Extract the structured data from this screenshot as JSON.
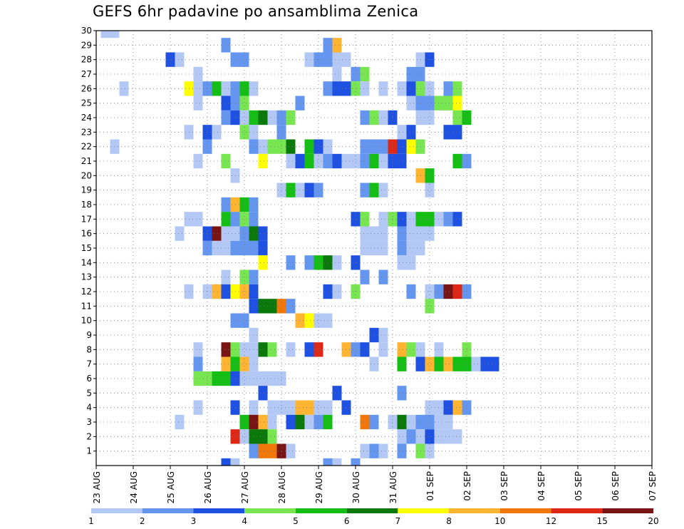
{
  "chart_data": {
    "type": "heatmap",
    "title": "GEFS 6hr padavine po ansamblima Zenica",
    "xlabel": "",
    "ylabel": "",
    "x_ticks": [
      "23 AUG",
      "24 AUG",
      "25 AUG",
      "26 AUG",
      "27 AUG",
      "28 AUG",
      "29 AUG",
      "30 AUG",
      "31 AUG",
      "01 SEP",
      "02 SEP",
      "03 SEP",
      "04 SEP",
      "05 SEP",
      "06 SEP",
      "07 SEP"
    ],
    "x_steps": 61,
    "steps_per_day": 4,
    "y_members": [
      1,
      2,
      3,
      4,
      5,
      6,
      7,
      8,
      9,
      10,
      11,
      12,
      13,
      14,
      15,
      16,
      17,
      18,
      19,
      20,
      21,
      22,
      23,
      24,
      25,
      26,
      27,
      28,
      29,
      30
    ],
    "y_range": [
      0,
      30
    ],
    "grid": true,
    "legend_position": "bottom",
    "legend": {
      "colors": [
        "#b4c8f5",
        "#6496f0",
        "#1e50e1",
        "#78e650",
        "#14be14",
        "#0a780a",
        "#ffff00",
        "#ffb432",
        "#f0780a",
        "#dc2814",
        "#781414"
      ],
      "labels": [
        "1",
        "2",
        "3",
        "4",
        "5",
        "6",
        "7",
        "8",
        "10",
        "12",
        "15",
        "20"
      ]
    },
    "cells": [
      [
        1,
        30,
        1
      ],
      [
        2,
        30,
        1
      ],
      [
        14,
        29,
        2
      ],
      [
        25,
        29,
        2
      ],
      [
        26,
        29,
        8
      ],
      [
        8,
        28,
        3
      ],
      [
        9,
        28,
        1
      ],
      [
        15,
        28,
        2
      ],
      [
        16,
        28,
        2
      ],
      [
        23,
        28,
        1
      ],
      [
        24,
        28,
        2
      ],
      [
        25,
        28,
        2
      ],
      [
        26,
        28,
        1
      ],
      [
        27,
        28,
        1
      ],
      [
        35,
        28,
        1
      ],
      [
        36,
        28,
        3
      ],
      [
        11,
        27,
        1
      ],
      [
        26,
        27,
        1
      ],
      [
        28,
        27,
        2
      ],
      [
        29,
        27,
        4
      ],
      [
        34,
        27,
        2
      ],
      [
        35,
        27,
        2
      ],
      [
        3,
        26,
        1
      ],
      [
        10,
        26,
        7
      ],
      [
        11,
        26,
        1
      ],
      [
        12,
        26,
        2
      ],
      [
        13,
        26,
        5
      ],
      [
        14,
        26,
        1
      ],
      [
        15,
        26,
        2
      ],
      [
        16,
        26,
        5
      ],
      [
        17,
        26,
        1
      ],
      [
        25,
        26,
        2
      ],
      [
        26,
        26,
        3
      ],
      [
        27,
        26,
        3
      ],
      [
        28,
        26,
        4
      ],
      [
        29,
        26,
        1
      ],
      [
        31,
        26,
        1
      ],
      [
        33,
        26,
        1
      ],
      [
        34,
        26,
        3
      ],
      [
        35,
        26,
        4
      ],
      [
        36,
        26,
        1
      ],
      [
        38,
        26,
        2
      ],
      [
        39,
        26,
        4
      ],
      [
        11,
        25,
        1
      ],
      [
        14,
        25,
        3
      ],
      [
        15,
        25,
        2
      ],
      [
        16,
        25,
        4
      ],
      [
        22,
        25,
        2
      ],
      [
        34,
        25,
        1
      ],
      [
        35,
        25,
        2
      ],
      [
        36,
        25,
        2
      ],
      [
        37,
        25,
        4
      ],
      [
        38,
        25,
        4
      ],
      [
        39,
        25,
        7
      ],
      [
        14,
        24,
        2
      ],
      [
        15,
        24,
        3
      ],
      [
        16,
        24,
        1
      ],
      [
        17,
        24,
        5
      ],
      [
        18,
        24,
        6
      ],
      [
        19,
        24,
        1
      ],
      [
        20,
        24,
        2
      ],
      [
        21,
        24,
        4
      ],
      [
        29,
        24,
        2
      ],
      [
        30,
        24,
        4
      ],
      [
        31,
        24,
        1
      ],
      [
        32,
        24,
        3
      ],
      [
        35,
        24,
        1
      ],
      [
        36,
        24,
        1
      ],
      [
        39,
        24,
        4
      ],
      [
        40,
        24,
        5
      ],
      [
        10,
        23,
        1
      ],
      [
        12,
        23,
        3
      ],
      [
        13,
        23,
        1
      ],
      [
        16,
        23,
        4
      ],
      [
        17,
        23,
        1
      ],
      [
        20,
        23,
        2
      ],
      [
        33,
        23,
        1
      ],
      [
        34,
        23,
        3
      ],
      [
        38,
        23,
        3
      ],
      [
        39,
        23,
        3
      ],
      [
        2,
        22,
        1
      ],
      [
        12,
        22,
        2
      ],
      [
        17,
        22,
        2
      ],
      [
        18,
        22,
        1
      ],
      [
        19,
        22,
        4
      ],
      [
        20,
        22,
        4
      ],
      [
        21,
        22,
        6
      ],
      [
        23,
        22,
        5
      ],
      [
        24,
        22,
        3
      ],
      [
        25,
        22,
        1
      ],
      [
        29,
        22,
        2
      ],
      [
        30,
        22,
        2
      ],
      [
        31,
        22,
        2
      ],
      [
        32,
        22,
        10
      ],
      [
        33,
        22,
        3
      ],
      [
        34,
        22,
        7
      ],
      [
        35,
        22,
        4
      ],
      [
        11,
        21,
        1
      ],
      [
        14,
        21,
        4
      ],
      [
        18,
        21,
        7
      ],
      [
        21,
        21,
        1
      ],
      [
        22,
        21,
        3
      ],
      [
        23,
        21,
        5
      ],
      [
        24,
        21,
        1
      ],
      [
        25,
        21,
        2
      ],
      [
        26,
        21,
        3
      ],
      [
        27,
        21,
        1
      ],
      [
        28,
        21,
        1
      ],
      [
        29,
        21,
        2
      ],
      [
        30,
        21,
        5
      ],
      [
        31,
        21,
        1
      ],
      [
        32,
        21,
        3
      ],
      [
        33,
        21,
        3
      ],
      [
        39,
        21,
        5
      ],
      [
        40,
        21,
        2
      ],
      [
        15,
        20,
        1
      ],
      [
        35,
        20,
        8
      ],
      [
        36,
        20,
        5
      ],
      [
        20,
        19,
        1
      ],
      [
        21,
        19,
        5
      ],
      [
        22,
        19,
        1
      ],
      [
        23,
        19,
        3
      ],
      [
        24,
        19,
        2
      ],
      [
        29,
        19,
        2
      ],
      [
        30,
        19,
        5
      ],
      [
        31,
        19,
        1
      ],
      [
        36,
        19,
        1
      ],
      [
        14,
        18,
        2
      ],
      [
        15,
        18,
        8
      ],
      [
        16,
        18,
        5
      ],
      [
        17,
        18,
        2
      ],
      [
        10,
        17,
        1
      ],
      [
        11,
        17,
        1
      ],
      [
        14,
        17,
        5
      ],
      [
        15,
        17,
        2
      ],
      [
        16,
        17,
        4
      ],
      [
        17,
        17,
        2
      ],
      [
        28,
        17,
        3
      ],
      [
        29,
        17,
        4
      ],
      [
        31,
        17,
        1
      ],
      [
        32,
        17,
        4
      ],
      [
        33,
        17,
        3
      ],
      [
        34,
        17,
        1
      ],
      [
        35,
        17,
        5
      ],
      [
        36,
        17,
        5
      ],
      [
        37,
        17,
        1
      ],
      [
        38,
        17,
        2
      ],
      [
        39,
        17,
        3
      ],
      [
        9,
        16,
        1
      ],
      [
        12,
        16,
        3
      ],
      [
        13,
        16,
        11
      ],
      [
        14,
        16,
        1
      ],
      [
        15,
        16,
        1
      ],
      [
        16,
        16,
        2
      ],
      [
        17,
        16,
        6
      ],
      [
        18,
        16,
        3
      ],
      [
        29,
        16,
        1
      ],
      [
        30,
        16,
        1
      ],
      [
        31,
        16,
        1
      ],
      [
        33,
        16,
        2
      ],
      [
        34,
        16,
        1
      ],
      [
        35,
        16,
        1
      ],
      [
        36,
        16,
        1
      ],
      [
        12,
        15,
        2
      ],
      [
        13,
        15,
        1
      ],
      [
        14,
        15,
        1
      ],
      [
        15,
        15,
        2
      ],
      [
        16,
        15,
        2
      ],
      [
        17,
        15,
        2
      ],
      [
        18,
        15,
        3
      ],
      [
        29,
        15,
        1
      ],
      [
        30,
        15,
        1
      ],
      [
        31,
        15,
        1
      ],
      [
        33,
        15,
        2
      ],
      [
        34,
        15,
        1
      ],
      [
        35,
        15,
        1
      ],
      [
        18,
        14,
        7
      ],
      [
        21,
        14,
        2
      ],
      [
        23,
        14,
        2
      ],
      [
        24,
        14,
        5
      ],
      [
        25,
        14,
        6
      ],
      [
        26,
        14,
        1
      ],
      [
        28,
        14,
        3
      ],
      [
        33,
        14,
        1
      ],
      [
        34,
        14,
        1
      ],
      [
        14,
        13,
        1
      ],
      [
        16,
        13,
        4
      ],
      [
        17,
        13,
        2
      ],
      [
        29,
        13,
        2
      ],
      [
        31,
        13,
        2
      ],
      [
        10,
        12,
        1
      ],
      [
        12,
        12,
        1
      ],
      [
        13,
        12,
        8
      ],
      [
        14,
        12,
        3
      ],
      [
        15,
        12,
        7
      ],
      [
        16,
        12,
        8
      ],
      [
        17,
        12,
        3
      ],
      [
        25,
        12,
        3
      ],
      [
        26,
        12,
        1
      ],
      [
        28,
        12,
        4
      ],
      [
        34,
        12,
        2
      ],
      [
        36,
        12,
        1
      ],
      [
        37,
        12,
        2
      ],
      [
        38,
        12,
        11
      ],
      [
        39,
        12,
        10
      ],
      [
        40,
        12,
        2
      ],
      [
        17,
        11,
        3
      ],
      [
        18,
        11,
        6
      ],
      [
        19,
        11,
        6
      ],
      [
        20,
        11,
        9
      ],
      [
        21,
        11,
        2
      ],
      [
        36,
        11,
        4
      ],
      [
        15,
        10,
        2
      ],
      [
        16,
        10,
        2
      ],
      [
        22,
        10,
        8
      ],
      [
        23,
        10,
        7
      ],
      [
        24,
        10,
        1
      ],
      [
        25,
        10,
        1
      ],
      [
        17,
        9,
        1
      ],
      [
        30,
        9,
        3
      ],
      [
        31,
        9,
        1
      ],
      [
        11,
        8,
        1
      ],
      [
        14,
        8,
        11
      ],
      [
        15,
        8,
        4
      ],
      [
        16,
        8,
        1
      ],
      [
        17,
        8,
        1
      ],
      [
        18,
        8,
        6
      ],
      [
        19,
        8,
        4
      ],
      [
        21,
        8,
        1
      ],
      [
        23,
        8,
        3
      ],
      [
        24,
        8,
        10
      ],
      [
        27,
        8,
        8
      ],
      [
        28,
        8,
        2
      ],
      [
        29,
        8,
        3
      ],
      [
        31,
        8,
        1
      ],
      [
        33,
        8,
        8
      ],
      [
        34,
        8,
        4
      ],
      [
        35,
        8,
        1
      ],
      [
        37,
        8,
        1
      ],
      [
        40,
        8,
        4
      ],
      [
        11,
        7,
        2
      ],
      [
        14,
        7,
        8
      ],
      [
        15,
        7,
        5
      ],
      [
        16,
        7,
        8
      ],
      [
        17,
        7,
        1
      ],
      [
        30,
        7,
        1
      ],
      [
        33,
        7,
        5
      ],
      [
        35,
        7,
        3
      ],
      [
        36,
        7,
        8
      ],
      [
        37,
        7,
        5
      ],
      [
        38,
        7,
        8
      ],
      [
        39,
        7,
        5
      ],
      [
        40,
        7,
        5
      ],
      [
        41,
        7,
        1
      ],
      [
        42,
        7,
        3
      ],
      [
        43,
        7,
        3
      ],
      [
        11,
        6,
        4
      ],
      [
        12,
        6,
        4
      ],
      [
        13,
        6,
        5
      ],
      [
        14,
        6,
        5
      ],
      [
        15,
        6,
        3
      ],
      [
        16,
        6,
        1
      ],
      [
        17,
        6,
        1
      ],
      [
        18,
        6,
        1
      ],
      [
        19,
        6,
        1
      ],
      [
        20,
        6,
        1
      ],
      [
        18,
        5,
        3
      ],
      [
        26,
        5,
        3
      ],
      [
        33,
        5,
        2
      ],
      [
        11,
        4,
        1
      ],
      [
        15,
        4,
        3
      ],
      [
        17,
        4,
        1
      ],
      [
        19,
        4,
        1
      ],
      [
        20,
        4,
        1
      ],
      [
        21,
        4,
        1
      ],
      [
        22,
        4,
        8
      ],
      [
        23,
        4,
        8
      ],
      [
        24,
        4,
        1
      ],
      [
        25,
        4,
        1
      ],
      [
        27,
        4,
        3
      ],
      [
        36,
        4,
        1
      ],
      [
        37,
        4,
        1
      ],
      [
        38,
        4,
        3
      ],
      [
        39,
        4,
        8
      ],
      [
        40,
        4,
        2
      ],
      [
        9,
        3,
        1
      ],
      [
        16,
        3,
        5
      ],
      [
        17,
        3,
        11
      ],
      [
        18,
        3,
        8
      ],
      [
        19,
        3,
        1
      ],
      [
        21,
        3,
        3
      ],
      [
        22,
        3,
        6
      ],
      [
        23,
        3,
        1
      ],
      [
        24,
        3,
        2
      ],
      [
        25,
        3,
        5
      ],
      [
        29,
        3,
        9
      ],
      [
        30,
        3,
        2
      ],
      [
        32,
        3,
        1
      ],
      [
        33,
        3,
        6
      ],
      [
        34,
        3,
        1
      ],
      [
        35,
        3,
        2
      ],
      [
        36,
        3,
        2
      ],
      [
        37,
        3,
        1
      ],
      [
        38,
        3,
        1
      ],
      [
        15,
        2,
        10
      ],
      [
        16,
        2,
        1
      ],
      [
        17,
        2,
        6
      ],
      [
        18,
        2,
        6
      ],
      [
        19,
        2,
        4
      ],
      [
        33,
        2,
        1
      ],
      [
        34,
        2,
        2
      ],
      [
        35,
        2,
        1
      ],
      [
        36,
        2,
        3
      ],
      [
        37,
        2,
        1
      ],
      [
        38,
        2,
        1
      ],
      [
        39,
        2,
        1
      ],
      [
        17,
        1,
        2
      ],
      [
        18,
        1,
        9
      ],
      [
        19,
        1,
        9
      ],
      [
        20,
        1,
        11
      ],
      [
        21,
        1,
        1
      ],
      [
        29,
        1,
        1
      ],
      [
        30,
        1,
        2
      ],
      [
        31,
        1,
        1
      ],
      [
        33,
        1,
        2
      ],
      [
        35,
        1,
        4
      ],
      [
        36,
        1,
        1
      ],
      [
        14,
        0,
        3
      ],
      [
        15,
        0,
        1
      ],
      [
        25,
        0,
        2
      ],
      [
        26,
        0,
        1
      ],
      [
        28,
        0,
        2
      ]
    ]
  }
}
